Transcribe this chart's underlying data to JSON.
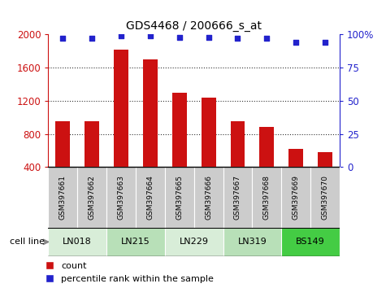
{
  "title": "GDS4468 / 200666_s_at",
  "samples": [
    "GSM397661",
    "GSM397662",
    "GSM397663",
    "GSM397664",
    "GSM397665",
    "GSM397666",
    "GSM397667",
    "GSM397668",
    "GSM397669",
    "GSM397670"
  ],
  "counts": [
    950,
    950,
    1820,
    1700,
    1300,
    1240,
    950,
    880,
    620,
    580
  ],
  "percentile_ranks": [
    97,
    97,
    99,
    99,
    98,
    98,
    97,
    97,
    94,
    94
  ],
  "cell_lines": [
    {
      "label": "LN018",
      "span": [
        0,
        2
      ],
      "color": "#d8edd8"
    },
    {
      "label": "LN215",
      "span": [
        2,
        4
      ],
      "color": "#b8e0b8"
    },
    {
      "label": "LN229",
      "span": [
        4,
        6
      ],
      "color": "#d8edd8"
    },
    {
      "label": "LN319",
      "span": [
        6,
        8
      ],
      "color": "#b8e0b8"
    },
    {
      "label": "BS149",
      "span": [
        8,
        10
      ],
      "color": "#44cc44"
    }
  ],
  "ylim_left": [
    400,
    2000
  ],
  "ylim_right": [
    0,
    100
  ],
  "yticks_left": [
    400,
    800,
    1200,
    1600,
    2000
  ],
  "yticks_right": [
    0,
    25,
    50,
    75,
    100
  ],
  "bar_color": "#cc1111",
  "scatter_color": "#2222cc",
  "grid_color": "#333333",
  "bg_color": "#cccccc",
  "cell_line_label": "cell line",
  "legend_count": "count",
  "legend_pct": "percentile rank within the sample"
}
